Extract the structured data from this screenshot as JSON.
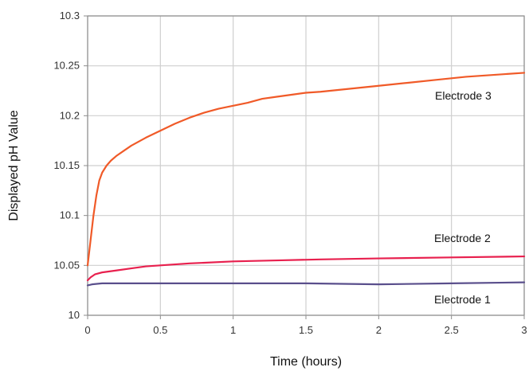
{
  "chart_data": {
    "type": "line",
    "title": "",
    "xlabel": "Time (hours)",
    "ylabel": "Displayed pH Value",
    "xlim": [
      0,
      3
    ],
    "ylim": [
      10,
      10.3
    ],
    "x_ticks": [
      0,
      0.5,
      1,
      1.5,
      2,
      2.5,
      3
    ],
    "y_ticks": [
      10,
      10.05,
      10.1,
      10.15,
      10.2,
      10.25,
      10.3
    ],
    "x_tick_labels": [
      "0",
      "0.5",
      "1",
      "1.5",
      "2",
      "2.5",
      "3"
    ],
    "y_tick_labels": [
      "10",
      "10.05",
      "10.1",
      "10.15",
      "10.2",
      "10.25",
      "10.3"
    ],
    "grid": true,
    "legend": "none",
    "series": [
      {
        "name": "Electrode 3",
        "color": "#f05a28",
        "x": [
          0,
          0.02,
          0.04,
          0.06,
          0.08,
          0.1,
          0.13,
          0.16,
          0.2,
          0.25,
          0.3,
          0.4,
          0.5,
          0.6,
          0.7,
          0.8,
          0.9,
          1.0,
          1.1,
          1.2,
          1.3,
          1.4,
          1.5,
          1.6,
          1.8,
          2.0,
          2.2,
          2.4,
          2.6,
          2.8,
          3.0
        ],
        "y": [
          10.05,
          10.075,
          10.1,
          10.12,
          10.135,
          10.143,
          10.15,
          10.155,
          10.16,
          10.165,
          10.17,
          10.178,
          10.185,
          10.192,
          10.198,
          10.203,
          10.207,
          10.21,
          10.213,
          10.217,
          10.219,
          10.221,
          10.223,
          10.224,
          10.227,
          10.23,
          10.233,
          10.236,
          10.239,
          10.241,
          10.243
        ]
      },
      {
        "name": "Electrode 2",
        "color": "#e8204e",
        "x": [
          0,
          0.02,
          0.05,
          0.1,
          0.2,
          0.3,
          0.4,
          0.5,
          0.7,
          1.0,
          1.3,
          1.6,
          2.0,
          2.5,
          3.0
        ],
        "y": [
          10.035,
          10.038,
          10.041,
          10.043,
          10.045,
          10.047,
          10.049,
          10.05,
          10.052,
          10.054,
          10.055,
          10.056,
          10.057,
          10.058,
          10.059
        ]
      },
      {
        "name": "Electrode 1",
        "color": "#5a4f8c",
        "x": [
          0,
          0.03,
          0.1,
          0.3,
          0.6,
          1.0,
          1.5,
          2.0,
          2.5,
          3.0
        ],
        "y": [
          10.03,
          10.031,
          10.032,
          10.032,
          10.032,
          10.032,
          10.032,
          10.031,
          10.032,
          10.033
        ]
      }
    ],
    "annotations": [
      "Electrode 3",
      "Electrode 2",
      "Electrode 1"
    ]
  }
}
